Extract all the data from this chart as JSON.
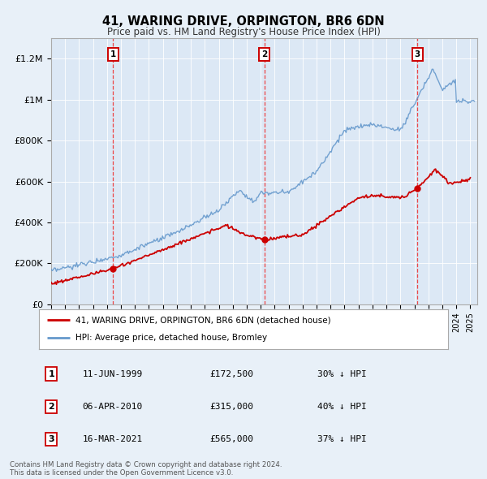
{
  "title": "41, WARING DRIVE, ORPINGTON, BR6 6DN",
  "subtitle": "Price paid vs. HM Land Registry's House Price Index (HPI)",
  "bg_color": "#e8f0f8",
  "plot_bg_color": "#dce8f5",
  "red_line_color": "#cc0000",
  "blue_line_color": "#6699cc",
  "sale_years": [
    1999.44,
    2010.26,
    2021.21
  ],
  "sale_prices": [
    172500,
    315000,
    565000
  ],
  "vline_color": "#ee3333",
  "legend_entries": [
    "41, WARING DRIVE, ORPINGTON, BR6 6DN (detached house)",
    "HPI: Average price, detached house, Bromley"
  ],
  "table_data": [
    [
      "1",
      "11-JUN-1999",
      "£172,500",
      "30% ↓ HPI"
    ],
    [
      "2",
      "06-APR-2010",
      "£315,000",
      "40% ↓ HPI"
    ],
    [
      "3",
      "16-MAR-2021",
      "£565,000",
      "37% ↓ HPI"
    ]
  ],
  "footnote": "Contains HM Land Registry data © Crown copyright and database right 2024.\nThis data is licensed under the Open Government Licence v3.0.",
  "ylim": [
    0,
    1300000
  ],
  "yticks": [
    0,
    200000,
    400000,
    600000,
    800000,
    1000000,
    1200000
  ],
  "ytick_labels": [
    "£0",
    "£200K",
    "£400K",
    "£600K",
    "£800K",
    "£1M",
    "£1.2M"
  ],
  "xmin": 1995,
  "xmax": 2025.5
}
